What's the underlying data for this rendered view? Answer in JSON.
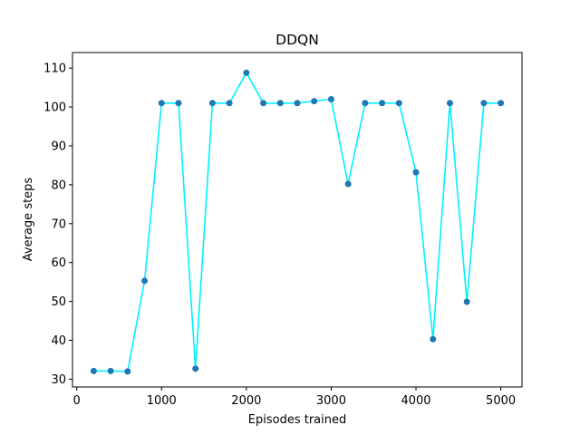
{
  "chart_data": {
    "type": "line",
    "title": "DDQN",
    "xlabel": "Episodes trained",
    "ylabel": "Average steps",
    "xlim": [
      -50,
      5250
    ],
    "ylim": [
      28,
      114
    ],
    "xticks": [
      0,
      1000,
      2000,
      3000,
      4000,
      5000
    ],
    "yticks": [
      30,
      40,
      50,
      60,
      70,
      80,
      90,
      100,
      110
    ],
    "grid": false,
    "series": [
      {
        "x": [
          200,
          400,
          600,
          800,
          1000,
          1200,
          1400,
          1600,
          1800,
          2000,
          2200,
          2400,
          2600,
          2800,
          3000,
          3200,
          3400,
          3600,
          3800,
          4000,
          4200,
          4400,
          4600,
          4800,
          5000
        ],
        "y": [
          32.1,
          32.1,
          32.0,
          55.3,
          101.0,
          101.0,
          32.7,
          101.0,
          101.0,
          108.8,
          101.0,
          101.0,
          101.0,
          101.5,
          102.0,
          80.2,
          101.0,
          101.0,
          101.0,
          83.2,
          40.3,
          101.0,
          49.9,
          101.0,
          101.0
        ],
        "line_color": "#00f0ff",
        "marker_color": "#1f77b4"
      }
    ]
  }
}
